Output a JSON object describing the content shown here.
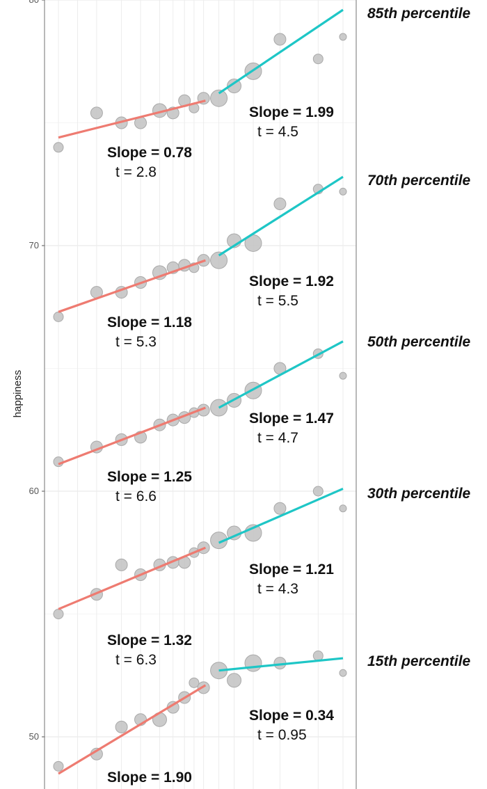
{
  "chart_data": {
    "type": "scatter",
    "ylabel": "happiness",
    "xlabel": "",
    "ylim": [
      48.5,
      80
    ],
    "xlim": [
      0.5,
      16.5
    ],
    "yticks": [
      50,
      60,
      70,
      80
    ],
    "grid": true,
    "colors": {
      "low": "#ee7b71",
      "high": "#1ec6c6",
      "point": "#c2c2c2",
      "point_stroke": "#a9a9a9"
    },
    "series": [
      {
        "name": "85th percentile",
        "points": [
          {
            "x": 1,
            "y": 74.0,
            "w": 2
          },
          {
            "x": 3,
            "y": 75.4,
            "w": 3
          },
          {
            "x": 4.3,
            "y": 75.0,
            "w": 3
          },
          {
            "x": 5.3,
            "y": 75.0,
            "w": 3
          },
          {
            "x": 6.3,
            "y": 75.5,
            "w": 4
          },
          {
            "x": 7,
            "y": 75.4,
            "w": 3
          },
          {
            "x": 7.6,
            "y": 75.9,
            "w": 3
          },
          {
            "x": 8.1,
            "y": 75.6,
            "w": 2
          },
          {
            "x": 8.6,
            "y": 76.0,
            "w": 3
          },
          {
            "x": 9.4,
            "y": 76.0,
            "w": 5
          },
          {
            "x": 10.2,
            "y": 76.5,
            "w": 4
          },
          {
            "x": 11.2,
            "y": 77.1,
            "w": 5
          },
          {
            "x": 12.6,
            "y": 78.4,
            "w": 3
          },
          {
            "x": 14.6,
            "y": 77.6,
            "w": 2
          },
          {
            "x": 15.9,
            "y": 78.5,
            "w": 1
          }
        ],
        "fit_low": {
          "x": [
            1,
            8.7
          ],
          "y": [
            74.4,
            75.9
          ]
        },
        "fit_high": {
          "x": [
            9.4,
            15.9
          ],
          "y": [
            76.2,
            79.6
          ]
        },
        "annotation_low": {
          "slope": "Slope = 0.78",
          "t": "t = 2.8"
        },
        "annotation_high": {
          "slope": "Slope = 1.99",
          "t": "t = 4.5"
        }
      },
      {
        "name": "70th percentile",
        "points": [
          {
            "x": 1,
            "y": 67.1,
            "w": 2
          },
          {
            "x": 3,
            "y": 68.1,
            "w": 3
          },
          {
            "x": 4.3,
            "y": 68.1,
            "w": 3
          },
          {
            "x": 5.3,
            "y": 68.5,
            "w": 3
          },
          {
            "x": 6.3,
            "y": 68.9,
            "w": 4
          },
          {
            "x": 7,
            "y": 69.1,
            "w": 3
          },
          {
            "x": 7.6,
            "y": 69.2,
            "w": 3
          },
          {
            "x": 8.1,
            "y": 69.1,
            "w": 2
          },
          {
            "x": 8.6,
            "y": 69.4,
            "w": 3
          },
          {
            "x": 9.4,
            "y": 69.4,
            "w": 5
          },
          {
            "x": 10.2,
            "y": 70.2,
            "w": 4
          },
          {
            "x": 11.2,
            "y": 70.1,
            "w": 5
          },
          {
            "x": 12.6,
            "y": 71.7,
            "w": 3
          },
          {
            "x": 14.6,
            "y": 72.3,
            "w": 2
          },
          {
            "x": 15.9,
            "y": 72.2,
            "w": 1
          }
        ],
        "fit_low": {
          "x": [
            1,
            8.7
          ],
          "y": [
            67.3,
            69.4
          ]
        },
        "fit_high": {
          "x": [
            9.4,
            15.9
          ],
          "y": [
            69.6,
            72.8
          ]
        },
        "annotation_low": {
          "slope": "Slope = 1.18",
          "t": "t = 5.3"
        },
        "annotation_high": {
          "slope": "Slope = 1.92",
          "t": "t = 5.5"
        }
      },
      {
        "name": "50th percentile",
        "points": [
          {
            "x": 1,
            "y": 61.2,
            "w": 2
          },
          {
            "x": 3,
            "y": 61.8,
            "w": 3
          },
          {
            "x": 4.3,
            "y": 62.1,
            "w": 3
          },
          {
            "x": 5.3,
            "y": 62.2,
            "w": 3
          },
          {
            "x": 6.3,
            "y": 62.7,
            "w": 3
          },
          {
            "x": 7,
            "y": 62.9,
            "w": 3
          },
          {
            "x": 7.6,
            "y": 63.0,
            "w": 3
          },
          {
            "x": 8.1,
            "y": 63.2,
            "w": 2
          },
          {
            "x": 8.6,
            "y": 63.3,
            "w": 3
          },
          {
            "x": 9.4,
            "y": 63.4,
            "w": 5
          },
          {
            "x": 10.2,
            "y": 63.7,
            "w": 4
          },
          {
            "x": 11.2,
            "y": 64.1,
            "w": 5
          },
          {
            "x": 12.6,
            "y": 65.0,
            "w": 3
          },
          {
            "x": 14.6,
            "y": 65.6,
            "w": 2
          },
          {
            "x": 15.9,
            "y": 64.7,
            "w": 1
          }
        ],
        "fit_low": {
          "x": [
            1,
            8.7
          ],
          "y": [
            61.1,
            63.4
          ]
        },
        "fit_high": {
          "x": [
            9.4,
            15.9
          ],
          "y": [
            63.4,
            66.1
          ]
        },
        "annotation_low": {
          "slope": "Slope = 1.25",
          "t": "t = 6.6"
        },
        "annotation_high": {
          "slope": "Slope = 1.47",
          "t": "t = 4.7"
        }
      },
      {
        "name": "30th percentile",
        "points": [
          {
            "x": 1,
            "y": 55.0,
            "w": 2
          },
          {
            "x": 3,
            "y": 55.8,
            "w": 3
          },
          {
            "x": 4.3,
            "y": 57.0,
            "w": 3
          },
          {
            "x": 5.3,
            "y": 56.6,
            "w": 3
          },
          {
            "x": 6.3,
            "y": 57.0,
            "w": 3
          },
          {
            "x": 7,
            "y": 57.1,
            "w": 3
          },
          {
            "x": 7.6,
            "y": 57.1,
            "w": 3
          },
          {
            "x": 8.1,
            "y": 57.5,
            "w": 2
          },
          {
            "x": 8.6,
            "y": 57.7,
            "w": 3
          },
          {
            "x": 9.4,
            "y": 58.0,
            "w": 5
          },
          {
            "x": 10.2,
            "y": 58.3,
            "w": 4
          },
          {
            "x": 11.2,
            "y": 58.3,
            "w": 5
          },
          {
            "x": 12.6,
            "y": 59.3,
            "w": 3
          },
          {
            "x": 14.6,
            "y": 60.0,
            "w": 2
          },
          {
            "x": 15.9,
            "y": 59.3,
            "w": 1
          }
        ],
        "fit_low": {
          "x": [
            1,
            8.7
          ],
          "y": [
            55.2,
            57.7
          ]
        },
        "fit_high": {
          "x": [
            9.4,
            15.9
          ],
          "y": [
            57.9,
            60.1
          ]
        },
        "annotation_low": {
          "slope": "Slope = 1.32",
          "t": "t = 6.3"
        },
        "annotation_high": {
          "slope": "Slope = 1.21",
          "t": "t = 4.3"
        }
      },
      {
        "name": "15th percentile",
        "points": [
          {
            "x": 1,
            "y": 48.8,
            "w": 2
          },
          {
            "x": 3,
            "y": 49.3,
            "w": 3
          },
          {
            "x": 4.3,
            "y": 50.4,
            "w": 3
          },
          {
            "x": 5.3,
            "y": 50.7,
            "w": 3
          },
          {
            "x": 6.3,
            "y": 50.7,
            "w": 4
          },
          {
            "x": 7,
            "y": 51.2,
            "w": 3
          },
          {
            "x": 7.6,
            "y": 51.6,
            "w": 3
          },
          {
            "x": 8.1,
            "y": 52.2,
            "w": 2
          },
          {
            "x": 8.6,
            "y": 52.0,
            "w": 3
          },
          {
            "x": 9.4,
            "y": 52.7,
            "w": 5
          },
          {
            "x": 10.2,
            "y": 52.3,
            "w": 4
          },
          {
            "x": 11.2,
            "y": 53.0,
            "w": 5
          },
          {
            "x": 12.6,
            "y": 53.0,
            "w": 3
          },
          {
            "x": 14.6,
            "y": 53.3,
            "w": 2
          },
          {
            "x": 15.9,
            "y": 52.6,
            "w": 1
          }
        ],
        "fit_low": {
          "x": [
            1,
            8.7
          ],
          "y": [
            48.5,
            52.1
          ]
        },
        "fit_high": {
          "x": [
            9.4,
            15.9
          ],
          "y": [
            52.7,
            53.2
          ]
        },
        "annotation_low": {
          "slope": "Slope = 1.90",
          "t": ""
        },
        "annotation_high": {
          "slope": "Slope = 0.34",
          "t": "t = 0.95"
        }
      }
    ]
  }
}
